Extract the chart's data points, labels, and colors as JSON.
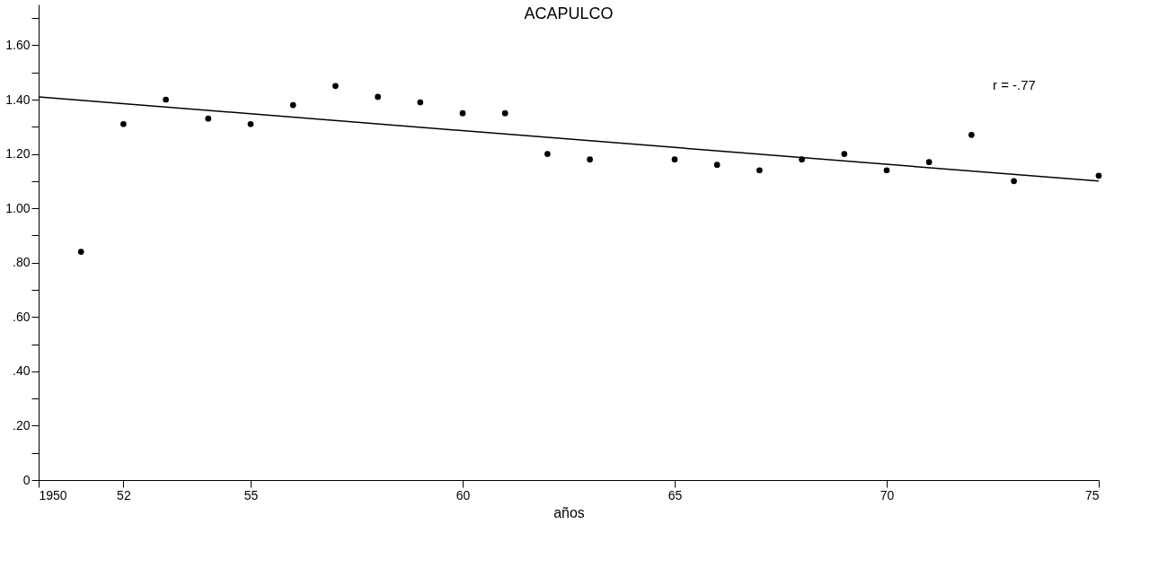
{
  "chart_data": {
    "type": "scatter",
    "title": "ACAPULCO",
    "xlabel": "años",
    "grid": false,
    "xlim": [
      1950,
      1975
    ],
    "ylim": [
      0,
      1.75
    ],
    "xticks": [
      {
        "value": 1950,
        "label": "1950"
      },
      {
        "value": 1952,
        "label": "52"
      },
      {
        "value": 1955,
        "label": "55"
      },
      {
        "value": 1960,
        "label": "60"
      },
      {
        "value": 1965,
        "label": "65"
      },
      {
        "value": 1970,
        "label": "70"
      },
      {
        "value": 1975,
        "label": "75"
      }
    ],
    "yticks": [
      0,
      {
        "value": 0.1,
        "label": null
      },
      {
        "value": 0.2,
        "label": ".20"
      },
      {
        "value": 0.3,
        "label": null
      },
      {
        "value": 0.4,
        "label": ".40"
      },
      {
        "value": 0.5,
        "label": null
      },
      {
        "value": 0.6,
        "label": ".60"
      },
      {
        "value": 0.7,
        "label": null
      },
      {
        "value": 0.8,
        "label": ".80"
      },
      {
        "value": 0.9,
        "label": null
      },
      {
        "value": 1.0,
        "label": "1.00"
      },
      {
        "value": 1.1,
        "label": null
      },
      {
        "value": 1.2,
        "label": "1.20"
      },
      {
        "value": 1.3,
        "label": null
      },
      {
        "value": 1.4,
        "label": "1.40"
      },
      {
        "value": 1.5,
        "label": null
      },
      {
        "value": 1.6,
        "label": "1.60"
      },
      {
        "value": 1.7,
        "label": null
      }
    ],
    "annotations": [
      "r = -.77"
    ],
    "series": [
      {
        "type": "scatter",
        "marker": "circle",
        "color": "#000000",
        "x": [
          1951,
          1952,
          1953,
          1954,
          1955,
          1956,
          1957,
          1958,
          1959,
          1960,
          1961,
          1962,
          1963,
          1965,
          1966,
          1967,
          1968,
          1969,
          1970,
          1971,
          1972,
          1973,
          1975
        ],
        "values": [
          0.84,
          1.31,
          1.4,
          1.33,
          1.31,
          1.38,
          1.45,
          1.41,
          1.39,
          1.35,
          1.35,
          1.2,
          1.18,
          1.18,
          1.16,
          1.14,
          1.18,
          1.2,
          1.14,
          1.17,
          1.27,
          1.1,
          1.12
        ]
      },
      {
        "type": "line",
        "color": "#000000",
        "x": [
          1950,
          1975
        ],
        "values": [
          1.41,
          1.1
        ]
      }
    ]
  }
}
